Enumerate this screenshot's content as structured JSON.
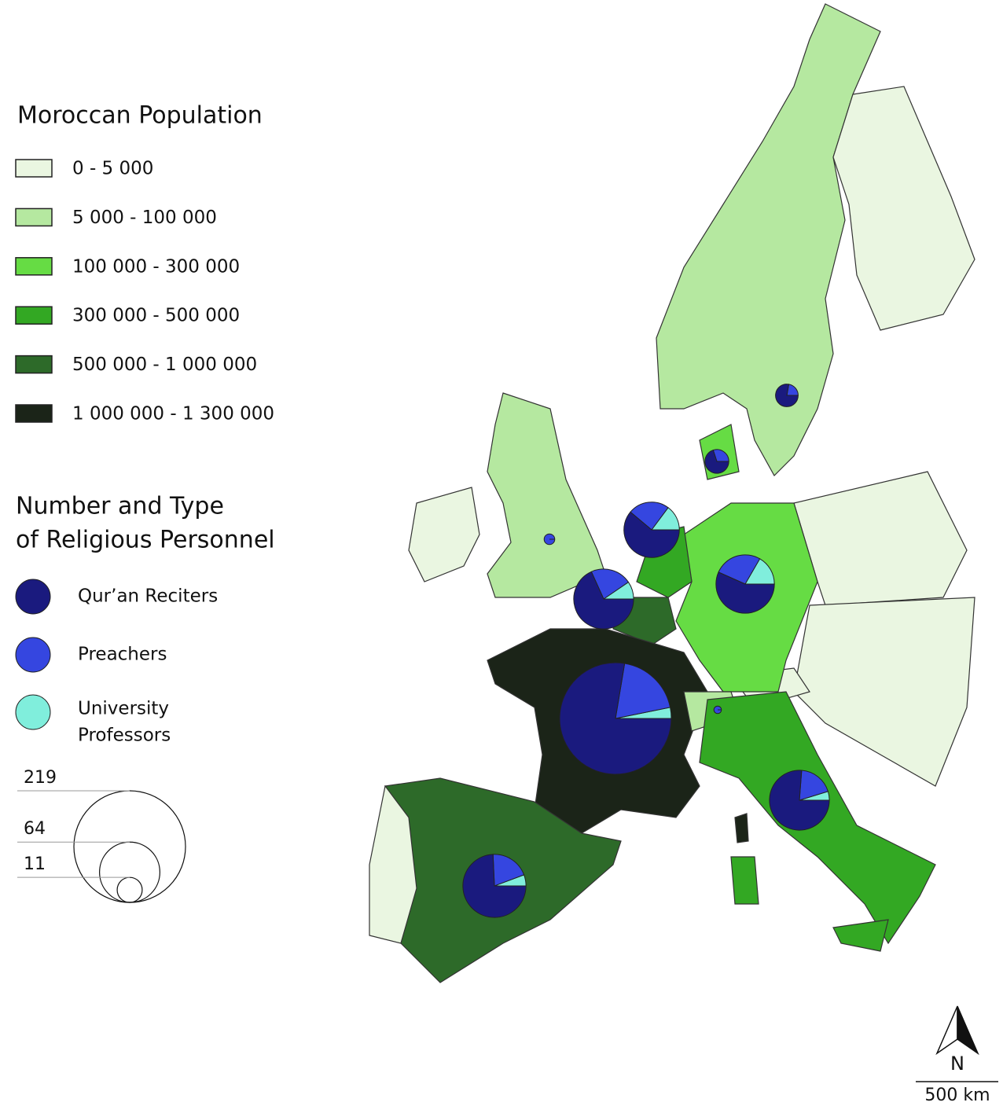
{
  "legend_population": {
    "title": "Moroccan Population",
    "classes": [
      {
        "label": "0 - 5 000",
        "color": "#eaf6e1"
      },
      {
        "label": "5 000 - 100 000",
        "color": "#b5e8a0"
      },
      {
        "label": "100 000 - 300 000",
        "color": "#66dc44"
      },
      {
        "label": "300 000 - 500 000",
        "color": "#33a823"
      },
      {
        "label": "500 000 - 1 000 000",
        "color": "#2d6a29"
      },
      {
        "label": "1 000 000 - 1 300 000",
        "color": "#1b2418"
      }
    ]
  },
  "legend_personnel": {
    "title": [
      "Number and Type",
      "of Religious Personnel"
    ],
    "types": [
      {
        "label": [
          "Qur’an Reciters"
        ],
        "color": "#1a1a7e"
      },
      {
        "label": [
          "Preachers"
        ],
        "color": "#3546e0"
      },
      {
        "label": [
          "University",
          "Professors"
        ],
        "color": "#80eedc"
      }
    ],
    "sizes": [
      219,
      64,
      11
    ]
  },
  "pies": [
    [
      170,
      42,
      7
    ],
    [
      52,
      14,
      4
    ],
    [
      48,
      12,
      3
    ],
    [
      43,
      14,
      6
    ],
    [
      33,
      13,
      8
    ],
    [
      34,
      16,
      10
    ],
    [
      7,
      3,
      0
    ],
    [
      7,
      2,
      0
    ],
    [
      0,
      2,
      0
    ],
    [
      0,
      1,
      0
    ]
  ],
  "north_label": "N",
  "scale_label": "500 km"
}
